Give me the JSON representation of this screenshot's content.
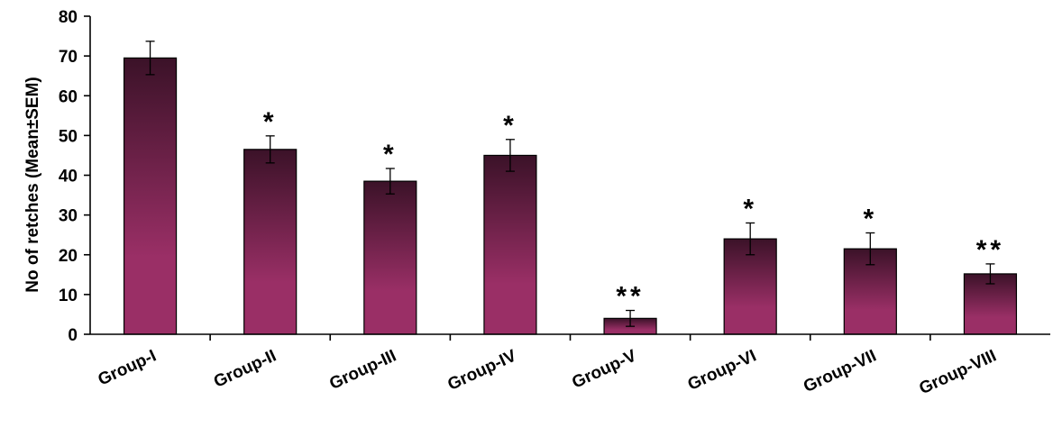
{
  "chart_data": {
    "type": "bar",
    "title": "",
    "xlabel": "",
    "ylabel": "No of retches (Mean±SEM)",
    "ylim": [
      0,
      80
    ],
    "yticks": [
      0,
      10,
      20,
      30,
      40,
      50,
      60,
      70,
      80
    ],
    "categories": [
      "Group-I",
      "Group-II",
      "Group-III",
      "Group-IV",
      "Group-V",
      "Group-VI",
      "Group-VII",
      "Group-VIII"
    ],
    "values": [
      69.5,
      46.5,
      38.5,
      45,
      4,
      24,
      21.5,
      15.2
    ],
    "errors": [
      4.2,
      3.4,
      3.2,
      4,
      2,
      4,
      4,
      2.5
    ],
    "significance": [
      "",
      "*",
      "*",
      "*",
      "**",
      "*",
      "*",
      "**"
    ],
    "bar_color_top": "#3b1228",
    "bar_color_bottom": "#9a2f66",
    "grid": false,
    "legend": "none"
  }
}
